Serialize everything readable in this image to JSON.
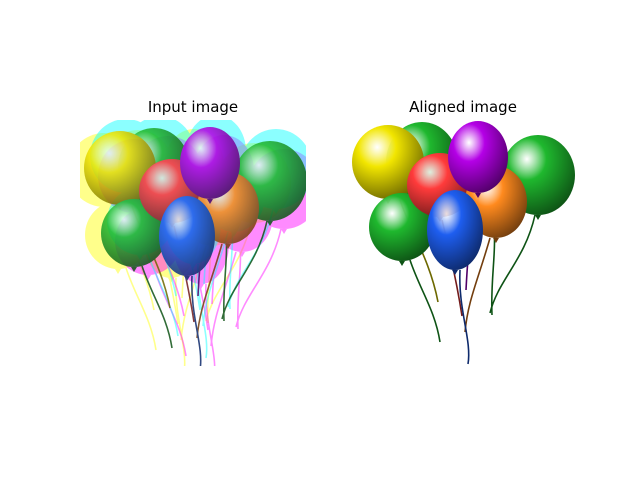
{
  "figure": {
    "panels": [
      {
        "title": "Input image"
      },
      {
        "title": "Aligned image"
      }
    ]
  },
  "balloon_colors": {
    "yellow": "#f2e600",
    "green": "#1fb82e",
    "red": "#ff3b3b",
    "purple": "#b400e6",
    "blue": "#1e5ef0",
    "orange": "#ff8a1e"
  },
  "channel_tints": [
    "#00ffff",
    "#ff00ff",
    "#ffff00"
  ]
}
